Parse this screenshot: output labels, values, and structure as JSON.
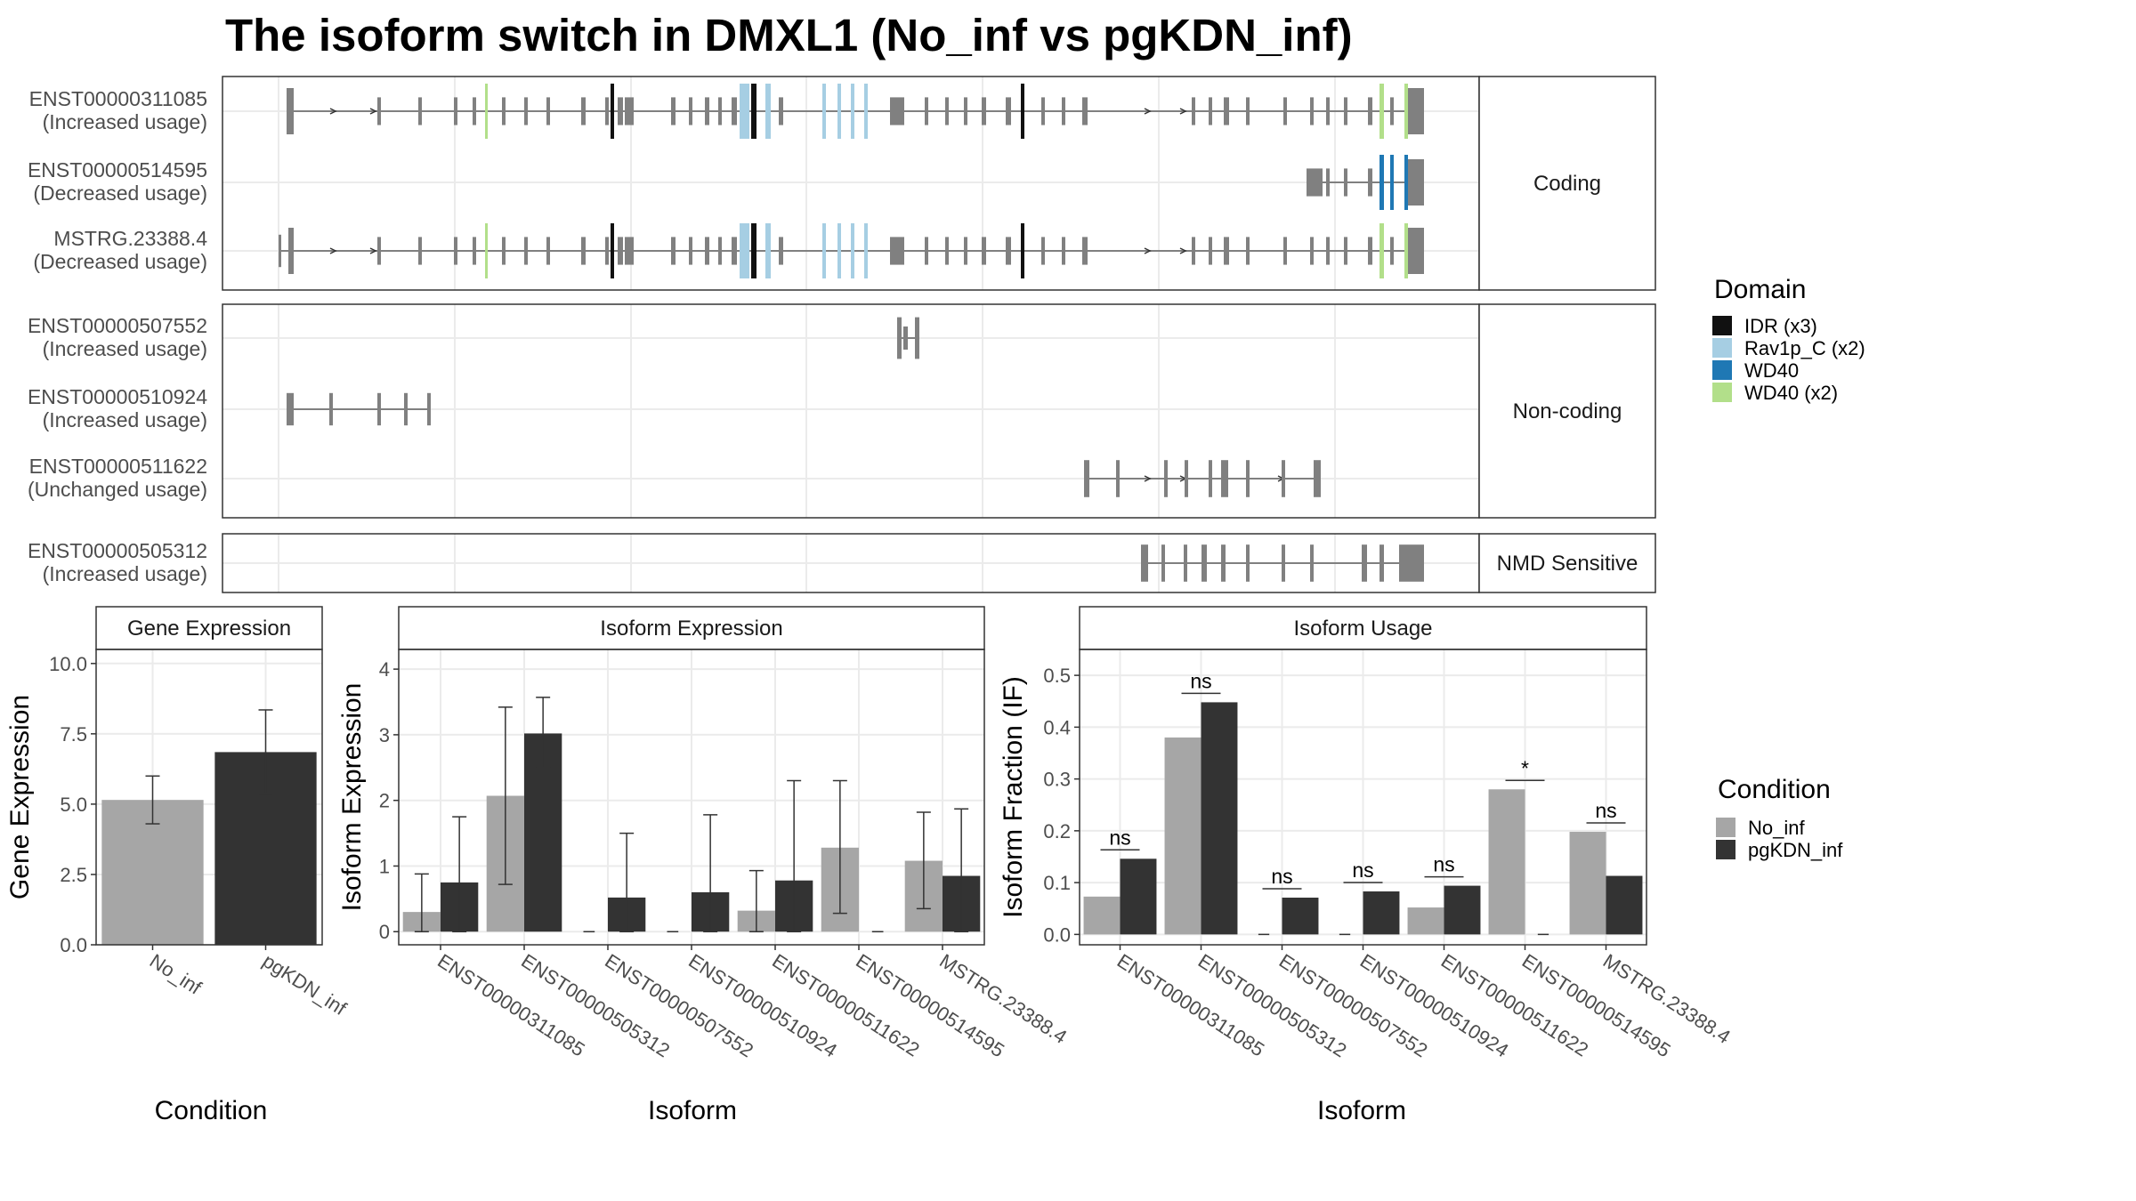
{
  "title": "The isoform switch in DMXL1 (No_inf vs pgKDN_inf)",
  "colors": {
    "IDR": "#111111",
    "Rav1p_C": "#a6cee3",
    "WD40": "#1f78b4",
    "WD40_x2": "#b2df8a",
    "exon": "#808080",
    "No_inf": "#a6a6a6",
    "pgKDN_inf": "#333333"
  },
  "transcript_panels": [
    {
      "strip": "Coding",
      "rows": [
        {
          "id": "ENST00000311085",
          "usage": "(Increased usage)"
        },
        {
          "id": "ENST00000514595",
          "usage": "(Decreased usage)"
        },
        {
          "id": "MSTRG.23388.4",
          "usage": "(Decreased usage)"
        }
      ]
    },
    {
      "strip": "Non-coding",
      "rows": [
        {
          "id": "ENST00000507552",
          "usage": "(Increased usage)"
        },
        {
          "id": "ENST00000510924",
          "usage": "(Increased usage)"
        },
        {
          "id": "ENST00000511622",
          "usage": "(Unchanged usage)"
        }
      ]
    },
    {
      "strip": "NMD Sensitive",
      "rows": [
        {
          "id": "ENST00000505312",
          "usage": "(Increased usage)"
        }
      ]
    }
  ],
  "domain_legend": {
    "title": "Domain",
    "items": [
      {
        "label": "IDR (x3)",
        "color": "#111111"
      },
      {
        "label": "Rav1p_C (x2)",
        "color": "#a6cee3"
      },
      {
        "label": "WD40",
        "color": "#1f78b4"
      },
      {
        "label": "WD40 (x2)",
        "color": "#b2df8a"
      }
    ]
  },
  "condition_legend": {
    "title": "Condition",
    "items": [
      {
        "label": "No_inf",
        "color": "#a6a6a6"
      },
      {
        "label": "pgKDN_inf",
        "color": "#333333"
      }
    ]
  },
  "chart_data": [
    {
      "type": "bar",
      "title": "Gene Expression",
      "xlabel": "Condition",
      "ylabel": "Gene Expression",
      "ylim": [
        0,
        10.5
      ],
      "yticks": [
        "0.0",
        "2.5",
        "5.0",
        "7.5",
        "10.0"
      ],
      "categories": [
        "No_inf",
        "pgKDN_inf"
      ],
      "values": [
        5.15,
        6.85
      ],
      "error_low": [
        4.3,
        5.35
      ],
      "error_high": [
        6.0,
        8.35
      ]
    },
    {
      "type": "bar",
      "title": "Isoform Expression",
      "xlabel": "Isoform",
      "ylabel": "Isoform Expression",
      "ylim": [
        -0.2,
        4.3
      ],
      "yticks": [
        "0",
        "1",
        "2",
        "3",
        "4"
      ],
      "categories": [
        "ENST00000311085",
        "ENST00000505312",
        "ENST00000507552",
        "ENST00000510924",
        "ENST00000511622",
        "ENST00000514595",
        "MSTRG.23388.4"
      ],
      "series": [
        {
          "name": "No_inf",
          "values": [
            0.3,
            2.07,
            0,
            0,
            0.32,
            1.28,
            1.08
          ],
          "error_low": [
            0,
            0.72,
            0,
            0,
            0,
            0.28,
            0.35
          ],
          "error_high": [
            0.88,
            3.42,
            0,
            0,
            0.93,
            2.3,
            1.82
          ]
        },
        {
          "name": "pgKDN_inf",
          "values": [
            0.75,
            3.02,
            0.52,
            0.6,
            0.78,
            0,
            0.85
          ],
          "error_low": [
            0,
            2.5,
            0,
            0,
            0,
            0,
            0
          ],
          "error_high": [
            1.75,
            3.57,
            1.5,
            1.78,
            2.3,
            0,
            1.87
          ]
        }
      ]
    },
    {
      "type": "bar",
      "title": "Isoform Usage",
      "xlabel": "Isoform",
      "ylabel": "Isoform Fraction (IF)",
      "ylim": [
        -0.02,
        0.55
      ],
      "yticks": [
        "0.0",
        "0.1",
        "0.2",
        "0.3",
        "0.4",
        "0.5"
      ],
      "categories": [
        "ENST00000311085",
        "ENST00000505312",
        "ENST00000507552",
        "ENST00000510924",
        "ENST00000511622",
        "ENST00000514595",
        "MSTRG.23388.4"
      ],
      "series": [
        {
          "name": "No_inf",
          "values": [
            0.073,
            0.38,
            0,
            0,
            0.052,
            0.28,
            0.198
          ]
        },
        {
          "name": "pgKDN_inf",
          "values": [
            0.146,
            0.448,
            0.071,
            0.083,
            0.094,
            0,
            0.113
          ]
        }
      ],
      "significance": [
        "ns",
        "ns",
        "ns",
        "ns",
        "ns",
        "*",
        "ns"
      ]
    }
  ]
}
